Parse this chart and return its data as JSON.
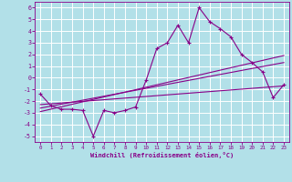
{
  "xlabel": "Windchill (Refroidissement éolien,°C)",
  "background_color": "#b2e0e8",
  "grid_color": "#ffffff",
  "line_color": "#880088",
  "xlim": [
    -0.5,
    23.5
  ],
  "ylim": [
    -5.5,
    6.5
  ],
  "xticks": [
    0,
    1,
    2,
    3,
    4,
    5,
    6,
    7,
    8,
    9,
    10,
    11,
    12,
    13,
    14,
    15,
    16,
    17,
    18,
    19,
    20,
    21,
    22,
    23
  ],
  "yticks": [
    -5,
    -4,
    -3,
    -2,
    -1,
    0,
    1,
    2,
    3,
    4,
    5,
    6
  ],
  "line1_x": [
    0,
    1,
    2,
    3,
    4,
    5,
    6,
    7,
    8,
    9,
    10,
    11,
    12,
    13,
    14,
    15,
    16,
    17,
    18,
    19,
    20,
    21,
    22,
    23
  ],
  "line1_y": [
    -1.4,
    -2.4,
    -2.7,
    -2.7,
    -2.8,
    -5.0,
    -2.8,
    -3.0,
    -2.8,
    -2.5,
    -0.2,
    2.5,
    3.0,
    4.5,
    3.0,
    6.0,
    4.8,
    4.2,
    3.5,
    2.0,
    1.3,
    0.5,
    -1.7,
    -0.6
  ],
  "line2_x": [
    0,
    23
  ],
  "line2_y": [
    -2.3,
    -0.7
  ],
  "line3_x": [
    0,
    23
  ],
  "line3_y": [
    -2.6,
    1.3
  ],
  "line4_x": [
    0,
    23
  ],
  "line4_y": [
    -2.9,
    1.9
  ],
  "figwidth": 3.2,
  "figheight": 2.0,
  "dpi": 100
}
